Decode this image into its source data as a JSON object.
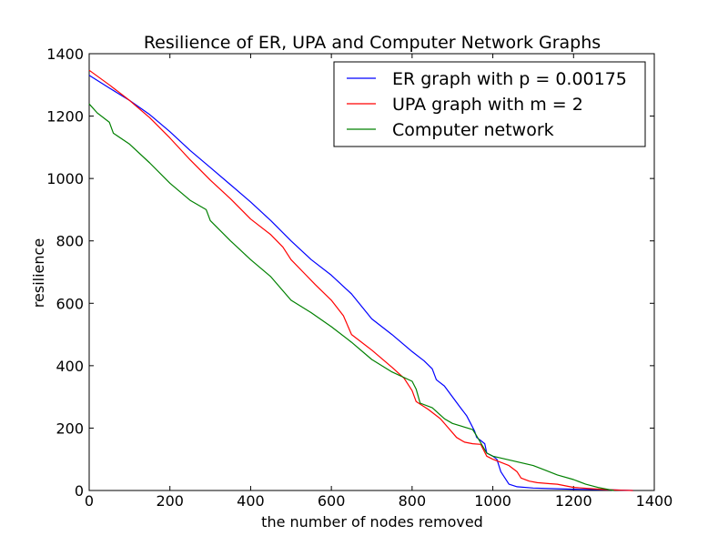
{
  "chart_data": {
    "type": "line",
    "title": "Resilience of ER, UPA and Computer Network Graphs",
    "xlabel": "the number of nodes removed",
    "ylabel": "resilience",
    "xlim": [
      0,
      1400
    ],
    "ylim": [
      0,
      1400
    ],
    "xticks": [
      "0",
      "200",
      "400",
      "600",
      "800",
      "1000",
      "1200",
      "1400"
    ],
    "yticks": [
      "0",
      "200",
      "400",
      "600",
      "800",
      "1000",
      "1200",
      "1400"
    ],
    "grid": false,
    "legend_position": "top-right",
    "series": [
      {
        "name": "ER graph with p = 0.00175",
        "color": "#0000ff",
        "points": [
          [
            0,
            1331
          ],
          [
            50,
            1290
          ],
          [
            100,
            1250
          ],
          [
            150,
            1205
          ],
          [
            200,
            1150
          ],
          [
            250,
            1090
          ],
          [
            300,
            1035
          ],
          [
            350,
            980
          ],
          [
            400,
            925
          ],
          [
            450,
            865
          ],
          [
            500,
            800
          ],
          [
            550,
            740
          ],
          [
            600,
            690
          ],
          [
            650,
            630
          ],
          [
            700,
            550
          ],
          [
            750,
            500
          ],
          [
            800,
            445
          ],
          [
            830,
            415
          ],
          [
            850,
            390
          ],
          [
            860,
            355
          ],
          [
            880,
            335
          ],
          [
            900,
            300
          ],
          [
            920,
            265
          ],
          [
            935,
            240
          ],
          [
            945,
            215
          ],
          [
            955,
            190
          ],
          [
            960,
            170
          ],
          [
            970,
            160
          ],
          [
            980,
            150
          ],
          [
            985,
            120
          ],
          [
            1000,
            110
          ],
          [
            1010,
            100
          ],
          [
            1020,
            60
          ],
          [
            1030,
            40
          ],
          [
            1040,
            20
          ],
          [
            1060,
            12
          ],
          [
            1100,
            8
          ],
          [
            1200,
            4
          ],
          [
            1300,
            2
          ],
          [
            1347,
            0
          ]
        ]
      },
      {
        "name": "UPA graph with m = 2",
        "color": "#ff0000",
        "points": [
          [
            0,
            1347
          ],
          [
            50,
            1300
          ],
          [
            100,
            1250
          ],
          [
            150,
            1195
          ],
          [
            200,
            1130
          ],
          [
            250,
            1060
          ],
          [
            300,
            995
          ],
          [
            350,
            935
          ],
          [
            400,
            870
          ],
          [
            450,
            820
          ],
          [
            480,
            780
          ],
          [
            500,
            740
          ],
          [
            530,
            700
          ],
          [
            560,
            660
          ],
          [
            600,
            610
          ],
          [
            630,
            560
          ],
          [
            650,
            500
          ],
          [
            700,
            450
          ],
          [
            750,
            395
          ],
          [
            780,
            360
          ],
          [
            800,
            320
          ],
          [
            810,
            285
          ],
          [
            840,
            260
          ],
          [
            870,
            230
          ],
          [
            890,
            200
          ],
          [
            910,
            170
          ],
          [
            930,
            155
          ],
          [
            950,
            150
          ],
          [
            970,
            148
          ],
          [
            985,
            110
          ],
          [
            1000,
            100
          ],
          [
            1020,
            90
          ],
          [
            1040,
            80
          ],
          [
            1060,
            60
          ],
          [
            1070,
            40
          ],
          [
            1090,
            30
          ],
          [
            1110,
            25
          ],
          [
            1140,
            22
          ],
          [
            1160,
            20
          ],
          [
            1180,
            15
          ],
          [
            1200,
            10
          ],
          [
            1240,
            6
          ],
          [
            1280,
            3
          ],
          [
            1320,
            1
          ],
          [
            1347,
            0
          ]
        ]
      },
      {
        "name": "Computer network",
        "color": "#008000",
        "points": [
          [
            0,
            1239
          ],
          [
            20,
            1210
          ],
          [
            50,
            1180
          ],
          [
            60,
            1145
          ],
          [
            100,
            1110
          ],
          [
            150,
            1050
          ],
          [
            200,
            985
          ],
          [
            250,
            930
          ],
          [
            290,
            900
          ],
          [
            300,
            865
          ],
          [
            350,
            800
          ],
          [
            400,
            740
          ],
          [
            450,
            685
          ],
          [
            500,
            610
          ],
          [
            550,
            570
          ],
          [
            600,
            525
          ],
          [
            650,
            475
          ],
          [
            700,
            420
          ],
          [
            750,
            380
          ],
          [
            800,
            350
          ],
          [
            810,
            325
          ],
          [
            820,
            280
          ],
          [
            850,
            265
          ],
          [
            880,
            230
          ],
          [
            900,
            215
          ],
          [
            950,
            195
          ],
          [
            960,
            175
          ],
          [
            985,
            120
          ],
          [
            1000,
            110
          ],
          [
            1050,
            95
          ],
          [
            1100,
            80
          ],
          [
            1130,
            65
          ],
          [
            1160,
            50
          ],
          [
            1200,
            35
          ],
          [
            1230,
            20
          ],
          [
            1260,
            10
          ],
          [
            1280,
            5
          ],
          [
            1300,
            0
          ]
        ]
      }
    ]
  }
}
